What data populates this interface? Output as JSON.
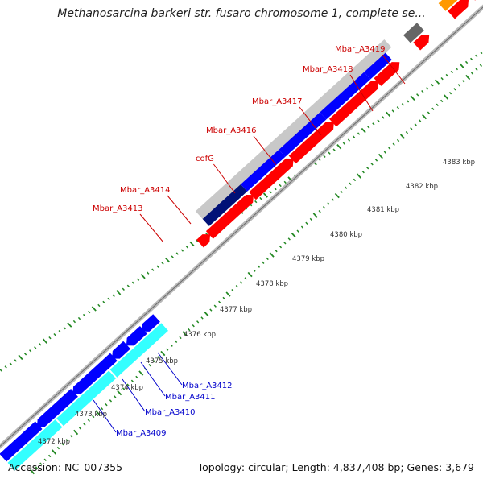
{
  "title": "Methanosarcina barkeri str. fusaro chromosome 1, complete se...",
  "footer": {
    "accession": "Accession: NC_007355",
    "summary": "Topology: circular; Length: 4,837,408 bp; Genes: 3,679"
  },
  "colors": {
    "forward_gene_label": "#cc0000",
    "reverse_gene_label": "#0000cc",
    "backbone": "#999999",
    "gc_ticks": "#228822",
    "cds_forward": "#ff0000",
    "cds_reverse": "#0000ff",
    "orf_navy": "#001177",
    "rna_gray": "#666666",
    "orange": "#ff9900",
    "light_gray": "#c8c8c8",
    "cyan": "#33ffff"
  },
  "scale_labels": [
    "4372 kbp",
    "4373 kbp",
    "4374 kbp",
    "4375 kbp",
    "4376 kbp",
    "4377 kbp",
    "4378 kbp",
    "4379 kbp",
    "4380 kbp",
    "4381 kbp",
    "4382 kbp",
    "4383 kbp"
  ],
  "top_gene_labels": [
    "Mbar_A3413",
    "Mbar_A3414",
    "cofG",
    "Mbar_A3416",
    "Mbar_A3417",
    "Mbar_A3418",
    "Mbar_A3419"
  ],
  "bottom_gene_labels": [
    "Mbar_A3412",
    "Mbar_A3411",
    "Mbar_A3410",
    "Mbar_A3409"
  ]
}
